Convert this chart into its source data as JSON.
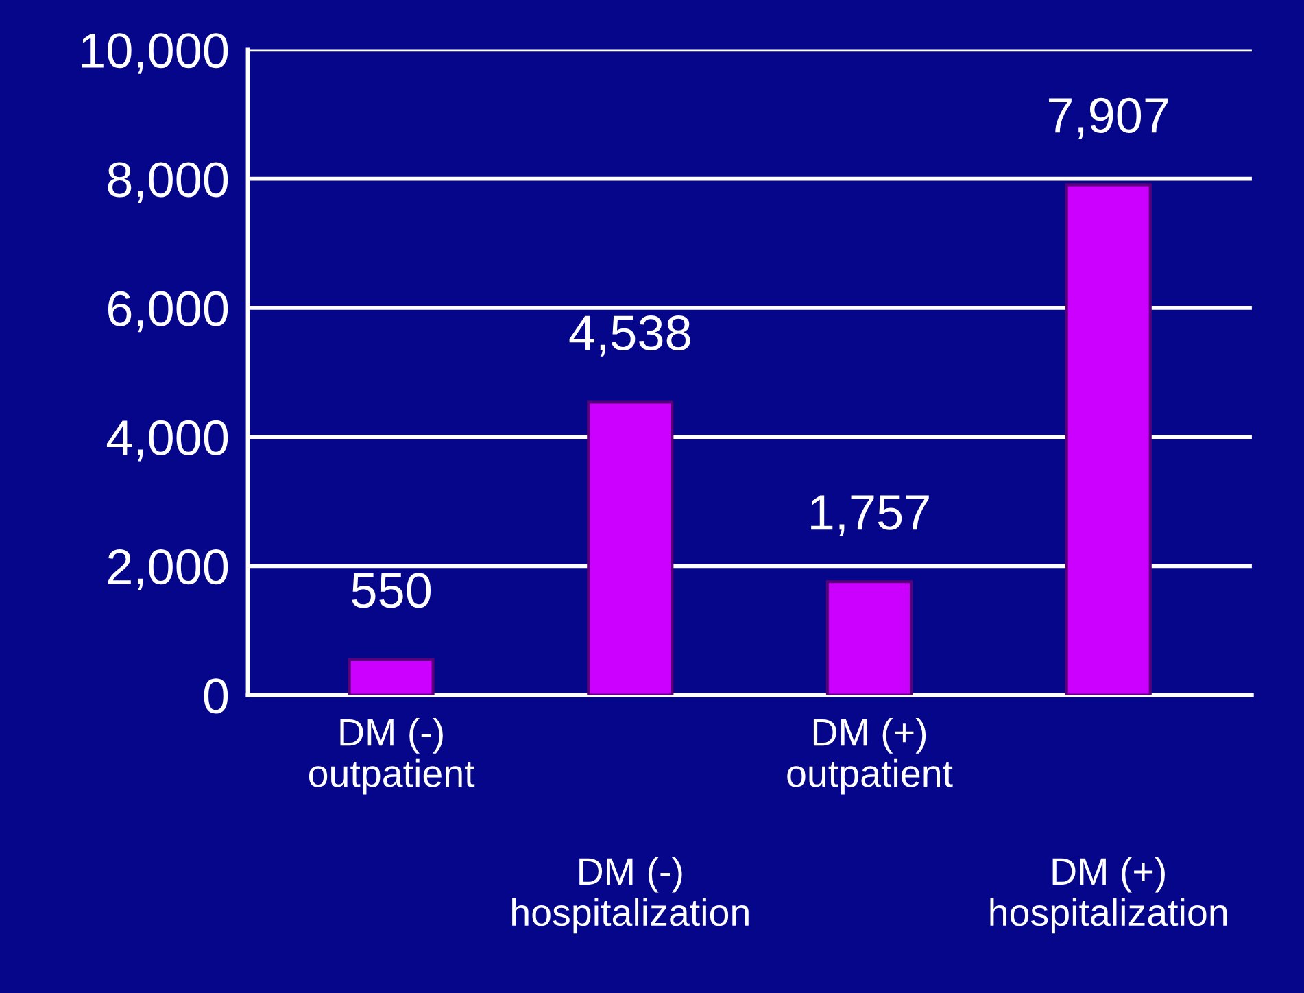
{
  "chart_data": {
    "type": "bar",
    "categories": [
      "DM (-)\noutpatient",
      "DM (-)\nhospitalization",
      "DM (+)\noutpatient",
      "DM (+)\nhospitalization"
    ],
    "values": [
      550,
      4538,
      1757,
      7907
    ],
    "value_labels": [
      "550",
      "4,538",
      "1,757",
      "7,907"
    ],
    "color": "#cc00ff",
    "ylim": [
      0,
      10000
    ],
    "yticks": [
      {
        "value": 0,
        "label": "0"
      },
      {
        "value": 2000,
        "label": "2,000"
      },
      {
        "value": 4000,
        "label": "4,000"
      },
      {
        "value": 6000,
        "label": "6,000"
      },
      {
        "value": 8000,
        "label": "8,000"
      },
      {
        "value": 10000,
        "label": "10,000"
      }
    ],
    "grid": "y"
  }
}
